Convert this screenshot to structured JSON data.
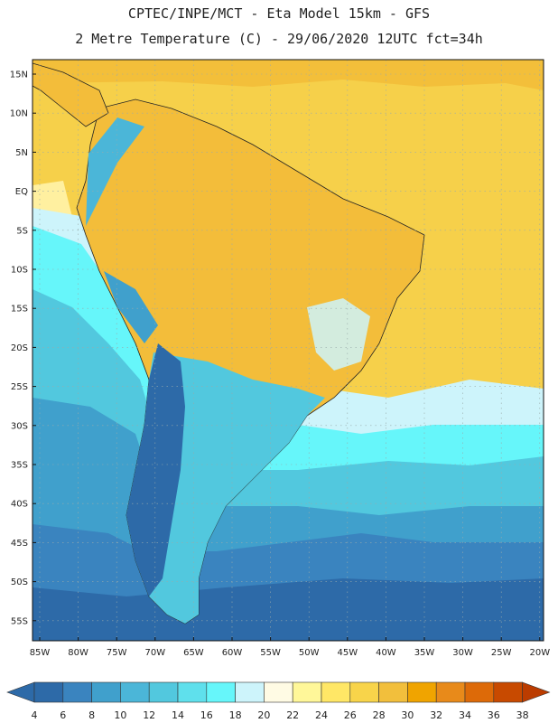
{
  "header": {
    "line1": "CPTEC/INPE/MCT -  Eta Model 15km - GFS",
    "line2": "2 Metre Temperature (C) - 29/06/2020 12UTC fct=34h"
  },
  "map": {
    "lat_labels": [
      "15N",
      "10N",
      "5N",
      "EQ",
      "5S",
      "10S",
      "15S",
      "20S",
      "25S",
      "30S",
      "35S",
      "40S",
      "45S",
      "50S",
      "55S"
    ],
    "lon_labels": [
      "85W",
      "80W",
      "75W",
      "70W",
      "65W",
      "60W",
      "55W",
      "50W",
      "45W",
      "40W",
      "35W",
      "30W",
      "25W",
      "20W"
    ]
  },
  "colorbar": {
    "ticks": [
      "4",
      "6",
      "8",
      "10",
      "12",
      "14",
      "16",
      "18",
      "20",
      "22",
      "24",
      "26",
      "28",
      "30",
      "32",
      "34",
      "36",
      "38"
    ],
    "colors": [
      "#2d6aa8",
      "#2d6aa8",
      "#3a84bf",
      "#40a0cc",
      "#4bb6d8",
      "#52c8de",
      "#5fe0ec",
      "#66f6fa",
      "#cdf4fb",
      "#fffbe4",
      "#fff799",
      "#ffe766",
      "#f8d44a",
      "#f2bf3c",
      "#f0a400",
      "#e88a1a",
      "#dd6a08",
      "#c84a00",
      "#bb3c00"
    ]
  }
}
